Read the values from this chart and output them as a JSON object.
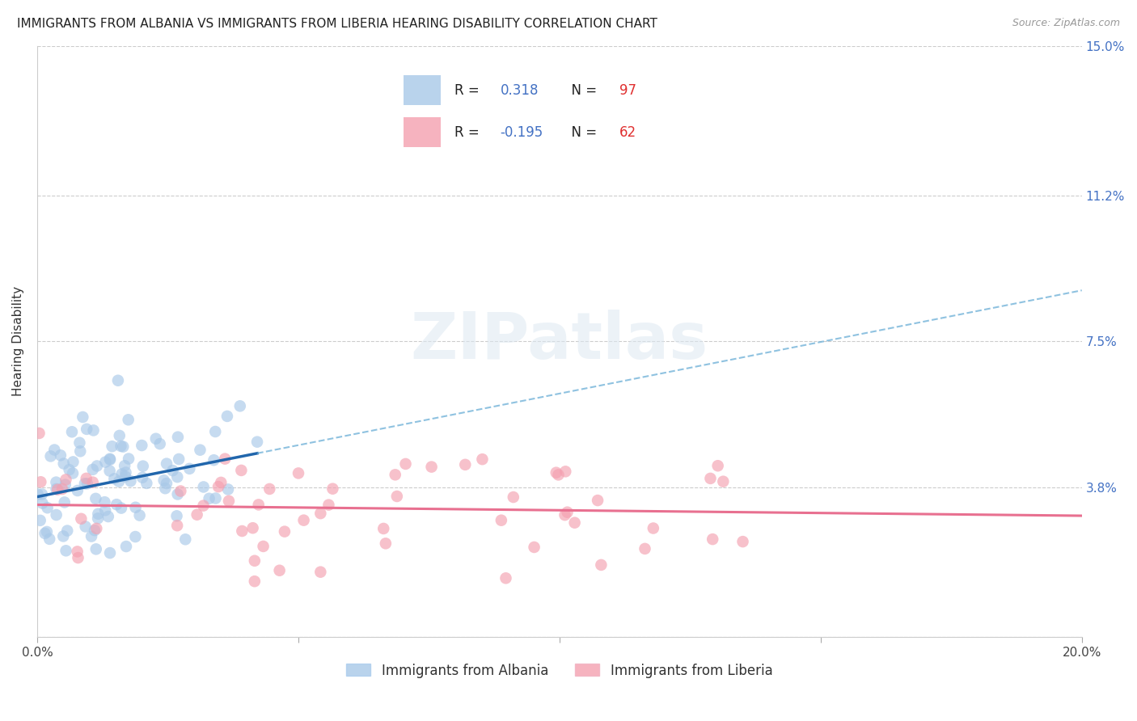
{
  "title": "IMMIGRANTS FROM ALBANIA VS IMMIGRANTS FROM LIBERIA HEARING DISABILITY CORRELATION CHART",
  "source": "Source: ZipAtlas.com",
  "ylabel": "Hearing Disability",
  "xlim": [
    0.0,
    0.2
  ],
  "ylim": [
    0.0,
    0.15
  ],
  "ytick_positions": [
    0.0,
    0.038,
    0.075,
    0.112,
    0.15
  ],
  "ytick_labels": [
    "",
    "3.8%",
    "7.5%",
    "11.2%",
    "15.0%"
  ],
  "xtick_positions": [
    0.0,
    0.05,
    0.1,
    0.15,
    0.2
  ],
  "xtick_labels": [
    "0.0%",
    "",
    "",
    "",
    "20.0%"
  ],
  "albania_color": "#a8c8e8",
  "liberia_color": "#f4a0b0",
  "albania_R": 0.318,
  "albania_N": 97,
  "liberia_R": -0.195,
  "liberia_N": 62,
  "albania_line_color": "#2166ac",
  "liberia_line_color": "#e87090",
  "albania_dash_color": "#6aaed6",
  "watermark": "ZIPatlas",
  "legend_label_albania": "Immigrants from Albania",
  "legend_label_liberia": "Immigrants from Liberia",
  "title_fontsize": 11,
  "source_fontsize": 9,
  "tick_fontsize": 11,
  "legend_fontsize": 12,
  "seed": 12345
}
